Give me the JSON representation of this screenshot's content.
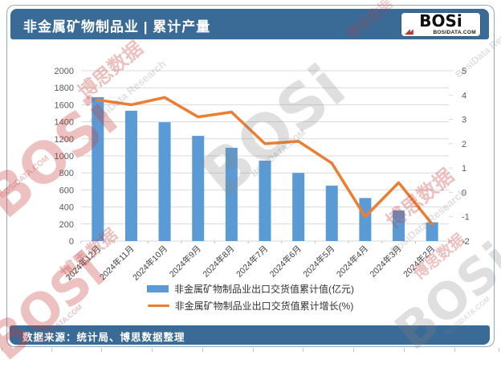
{
  "header": {
    "title": "非金属矿物制品业 | 累计产量",
    "logo": {
      "brand": "BOSi",
      "domain": "BOSIDATA.COM"
    }
  },
  "footer": {
    "source": "数据来源：统计局、博思数据整理"
  },
  "watermarks": {
    "brand": "BOSi",
    "domain": "BOSIDATA.COM",
    "cn": "博思数据",
    "en": "BosiData Research"
  },
  "chart_data": {
    "type": "bar+line combo",
    "categories": [
      "2024年12月",
      "2024年11月",
      "2024年10月",
      "2024年9月",
      "2024年8月",
      "2024年7月",
      "2024年6月",
      "2024年5月",
      "2024年4月",
      "2024年3月",
      "2024年2月"
    ],
    "series": [
      {
        "name": "非金属矿物制品业出口交货值累计值(亿元)",
        "type": "bar",
        "axis": "left",
        "color": "#5B9BD5",
        "values": [
          1690,
          1530,
          1395,
          1235,
          1095,
          945,
          800,
          650,
          505,
          360,
          220
        ]
      },
      {
        "name": "非金属矿物制品业出口交货值累计增长(%)",
        "type": "line",
        "axis": "right",
        "color": "#ED7D31",
        "values": [
          3.8,
          3.6,
          3.9,
          3.1,
          3.3,
          2.0,
          2.1,
          1.2,
          -1.0,
          0.4,
          -1.3
        ]
      }
    ],
    "left_axis": {
      "min": 0,
      "max": 2000,
      "step": 200
    },
    "right_axis": {
      "min": -2,
      "max": 5,
      "step": 1
    },
    "grid": true,
    "legend_position": "bottom"
  }
}
